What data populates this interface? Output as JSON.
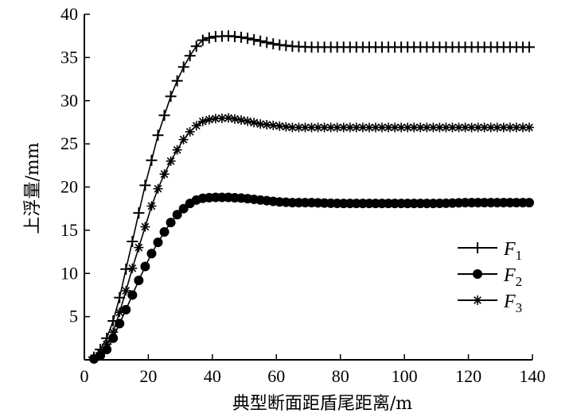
{
  "chart_data": {
    "type": "line",
    "xlabel": "典型断面距盾尾距离/m",
    "ylabel": "上浮量/mm",
    "xlim": [
      0,
      140
    ],
    "ylim": [
      0,
      40
    ],
    "xticks": [
      "0",
      "20",
      "40",
      "60",
      "80",
      "100",
      "120",
      "140"
    ],
    "yticks": [
      "5",
      "10",
      "15",
      "20",
      "25",
      "30",
      "35",
      "40"
    ],
    "legend_position": "right",
    "series": [
      {
        "name": "F1",
        "name_main": "F",
        "name_sub": "1",
        "marker": "plus",
        "x": [
          3,
          5,
          7,
          9,
          11,
          13,
          15,
          17,
          19,
          21,
          23,
          25,
          27,
          29,
          31,
          33,
          35,
          37,
          40,
          45,
          50,
          55,
          60,
          65,
          70,
          80,
          90,
          100,
          110,
          120,
          130,
          140
        ],
        "y": [
          0.3,
          1.2,
          2.5,
          4.5,
          7.2,
          10.5,
          13.7,
          17.0,
          20.2,
          23.1,
          26.0,
          28.3,
          30.5,
          32.3,
          33.9,
          35.2,
          36.3,
          37.0,
          37.4,
          37.5,
          37.3,
          36.9,
          36.5,
          36.3,
          36.2,
          36.2,
          36.2,
          36.2,
          36.2,
          36.2,
          36.2,
          36.2
        ]
      },
      {
        "name": "F2",
        "name_main": "F",
        "name_sub": "2",
        "marker": "circle",
        "x": [
          3,
          5,
          7,
          9,
          11,
          13,
          15,
          17,
          19,
          21,
          23,
          25,
          27,
          29,
          31,
          33,
          35,
          37,
          40,
          45,
          50,
          55,
          60,
          65,
          70,
          80,
          90,
          100,
          110,
          120,
          130,
          140
        ],
        "y": [
          0.1,
          0.5,
          1.2,
          2.5,
          4.2,
          5.8,
          7.5,
          9.2,
          10.8,
          12.3,
          13.6,
          14.8,
          15.9,
          16.8,
          17.5,
          18.1,
          18.5,
          18.7,
          18.8,
          18.8,
          18.7,
          18.5,
          18.3,
          18.2,
          18.2,
          18.1,
          18.1,
          18.1,
          18.1,
          18.2,
          18.2,
          18.2
        ]
      },
      {
        "name": "F3",
        "name_main": "F",
        "name_sub": "3",
        "marker": "asterisk",
        "x": [
          3,
          5,
          7,
          9,
          11,
          13,
          15,
          17,
          19,
          21,
          23,
          25,
          27,
          29,
          31,
          33,
          35,
          37,
          40,
          45,
          50,
          55,
          60,
          65,
          70,
          80,
          90,
          100,
          110,
          120,
          130,
          140
        ],
        "y": [
          0.2,
          0.8,
          1.8,
          3.2,
          5.5,
          8.0,
          10.6,
          13.0,
          15.4,
          17.8,
          19.8,
          21.5,
          23.0,
          24.3,
          25.5,
          26.4,
          27.1,
          27.6,
          27.9,
          28.0,
          27.7,
          27.3,
          27.1,
          26.9,
          26.9,
          26.9,
          26.9,
          26.9,
          26.9,
          26.9,
          26.9,
          26.9
        ]
      }
    ]
  }
}
